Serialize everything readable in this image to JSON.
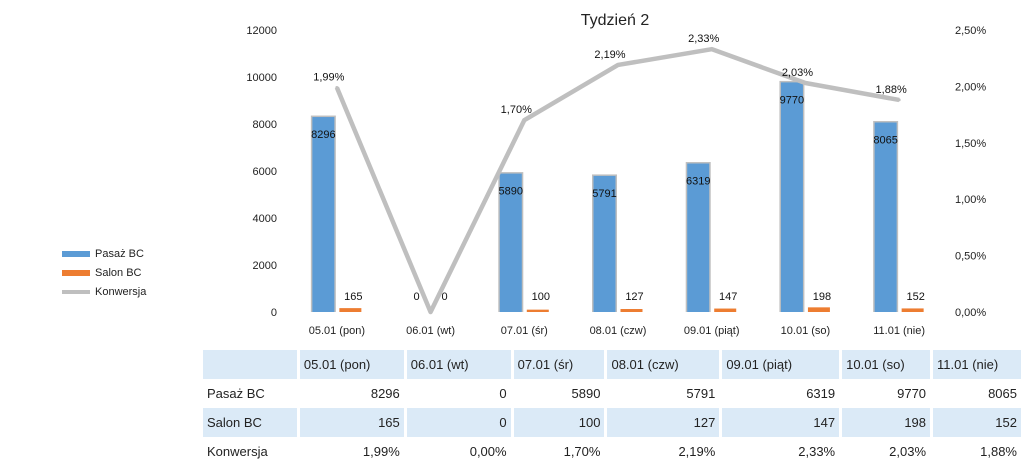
{
  "chart_data": {
    "type": "bar",
    "title": "Tydzień 2",
    "categories": [
      "05.01 (pon)",
      "06.01 (wt)",
      "07.01 (śr)",
      "08.01 (czw)",
      "09.01 (piąt)",
      "10.01 (so)",
      "11.01 (nie)"
    ],
    "series": [
      {
        "name": "Pasaż BC",
        "type": "bar",
        "axis": "left",
        "color": "#5b9bd5",
        "values": [
          8296,
          0,
          5890,
          5791,
          6319,
          9770,
          8065
        ],
        "labels": [
          "8296",
          "0",
          "5890",
          "5791",
          "6319",
          "9770",
          "8065"
        ]
      },
      {
        "name": "Salon BC",
        "type": "bar",
        "axis": "left",
        "color": "#ed7d31",
        "values": [
          165,
          0,
          100,
          127,
          147,
          198,
          152
        ],
        "labels": [
          "165",
          "0",
          "100",
          "127",
          "147",
          "198",
          "152"
        ]
      },
      {
        "name": "Konwersja",
        "type": "line",
        "axis": "right",
        "color": "#bfbfbf",
        "values": [
          1.99,
          0.0,
          1.7,
          2.19,
          2.33,
          2.03,
          1.88
        ],
        "labels": [
          "1,99%",
          "",
          "1,70%",
          "2,19%",
          "2,33%",
          "2,03%",
          "1,88%"
        ]
      }
    ],
    "ylim": [
      0,
      12000
    ],
    "yticks": [
      "0",
      "2000",
      "4000",
      "6000",
      "8000",
      "10000",
      "12000"
    ],
    "y2lim": [
      0,
      2.5
    ],
    "y2ticks": [
      "0,00%",
      "0,50%",
      "1,00%",
      "1,50%",
      "2,00%",
      "2,50%"
    ],
    "legend_position": "left",
    "grid": false
  },
  "table": {
    "header": [
      "05.01 (pon)",
      "06.01 (wt)",
      "07.01 (śr)",
      "08.01 (czw)",
      "09.01 (piąt)",
      "10.01 (so)",
      "11.01 (nie)"
    ],
    "rows": [
      {
        "label": "Pasaż BC",
        "cells": [
          "8296",
          "0",
          "5890",
          "5791",
          "6319",
          "9770",
          "8065"
        ]
      },
      {
        "label": "Salon BC",
        "cells": [
          "165",
          "0",
          "100",
          "127",
          "147",
          "198",
          "152"
        ]
      },
      {
        "label": "Konwersja",
        "cells": [
          "1,99%",
          "0,00%",
          "1,70%",
          "2,19%",
          "2,33%",
          "2,03%",
          "1,88%"
        ]
      }
    ]
  }
}
